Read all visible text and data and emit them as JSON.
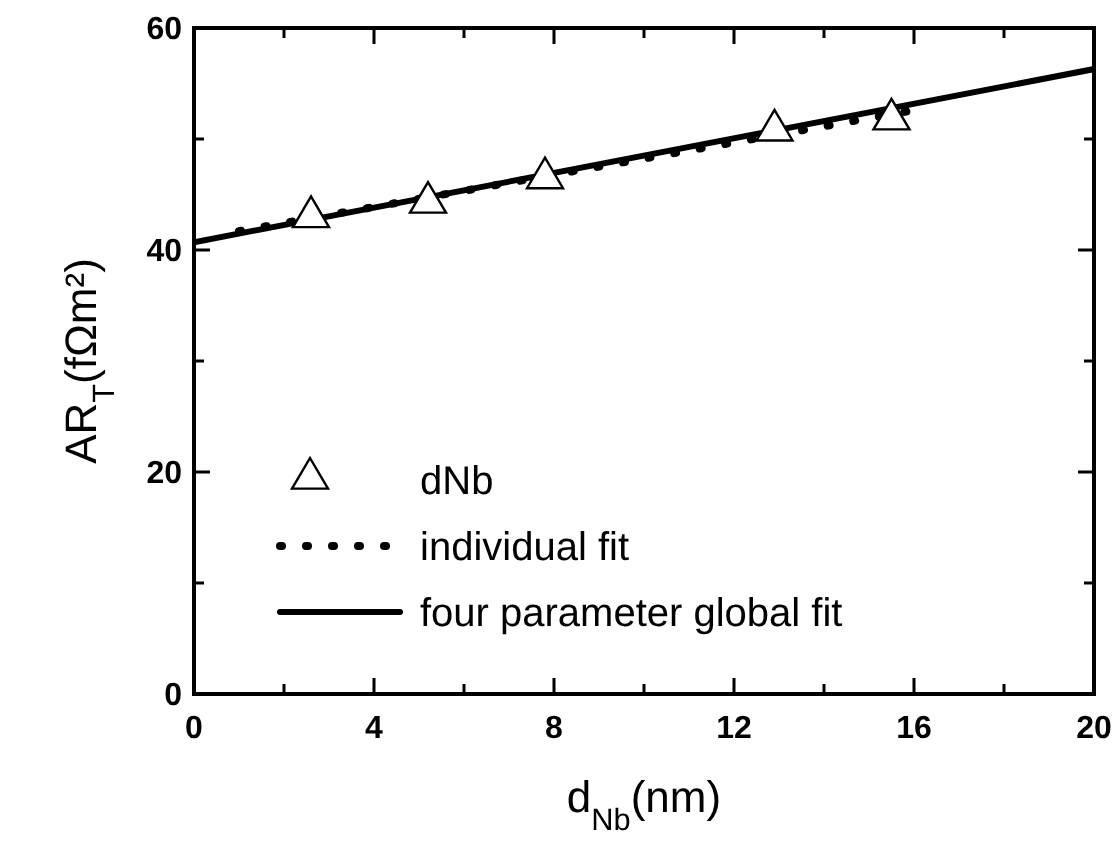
{
  "chart_data": {
    "type": "scatter",
    "xlabel": "d$_{Nb}$(nm)",
    "ylabel": "AR$_{T}$(fΩm²)",
    "xlim": [
      0,
      20
    ],
    "ylim": [
      0,
      60
    ],
    "xticks": [
      0,
      {
        "value": 2,
        "label": null
      },
      4,
      {
        "value": 6,
        "label": null
      },
      8,
      {
        "value": 10,
        "label": null
      },
      12,
      {
        "value": 14,
        "label": null
      },
      16,
      {
        "value": 18,
        "label": null
      },
      20
    ],
    "yticks": [
      0,
      {
        "value": 10,
        "label": null
      },
      20,
      {
        "value": 30,
        "label": null
      },
      40,
      {
        "value": 50,
        "label": null
      },
      60
    ],
    "legend": "left",
    "grid": false,
    "series": [
      {
        "name": "dNb",
        "marker": "triangle",
        "color": "#000000",
        "x": [
          2.6,
          5.2,
          7.8,
          12.9,
          15.5
        ],
        "values": [
          43.2,
          44.5,
          46.7,
          51.0,
          52.0
        ]
      },
      {
        "name": "individual fit",
        "type": "line",
        "line_style": "dotted",
        "color": "#000000",
        "x": [
          1,
          16
        ],
        "values": [
          41.7,
          52.6
        ]
      },
      {
        "name": "four parameter global fit",
        "type": "line",
        "line_style": "solid",
        "color": "#000000",
        "x": [
          0,
          20
        ],
        "values": [
          40.7,
          56.3
        ]
      }
    ]
  }
}
